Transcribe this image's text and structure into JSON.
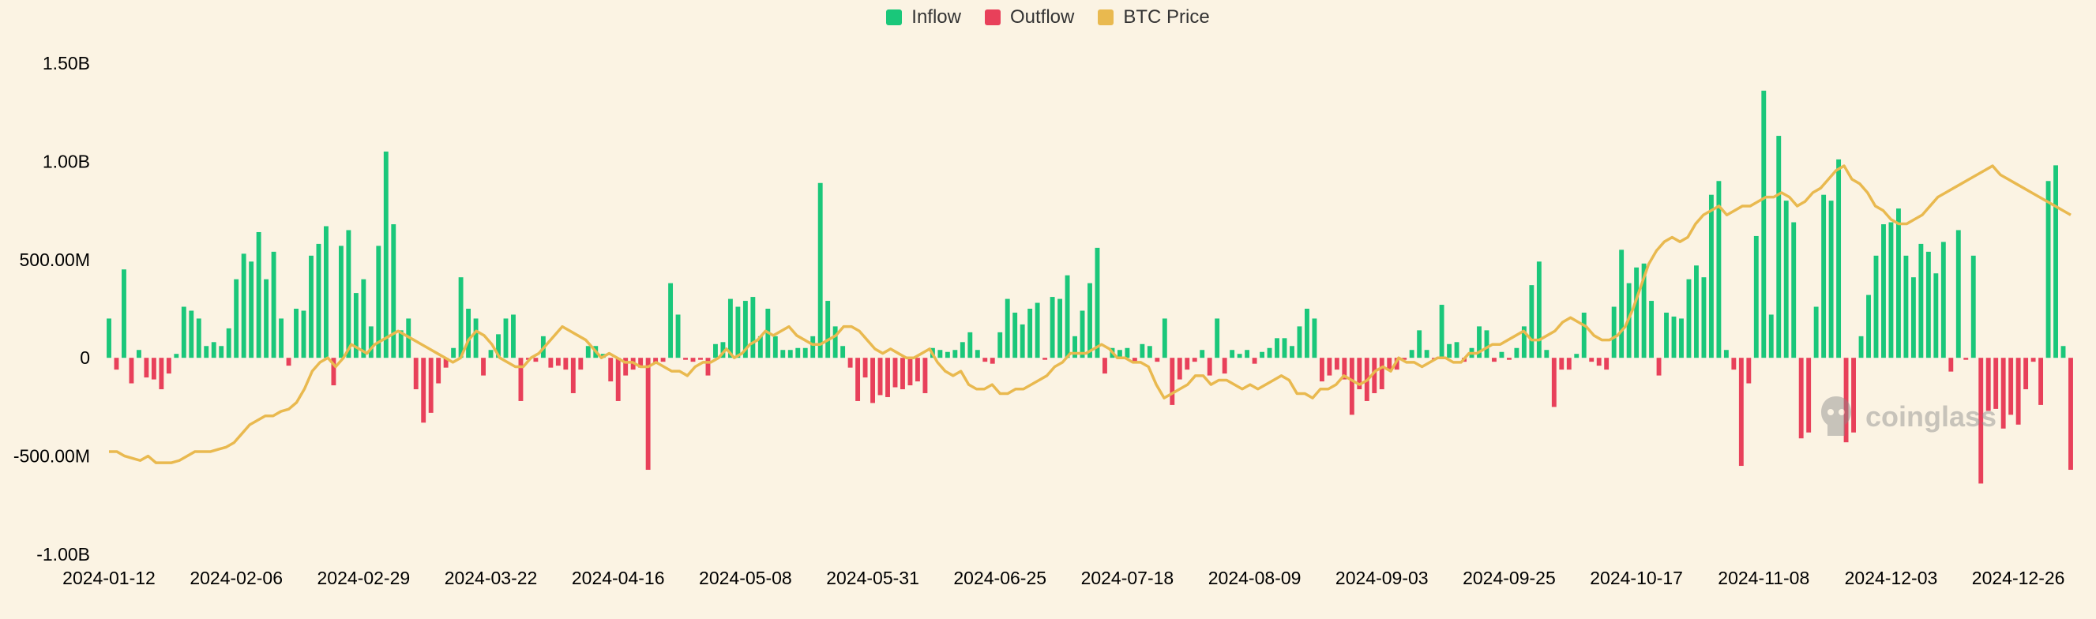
{
  "legend": {
    "inflow": "Inflow",
    "outflow": "Outflow",
    "price": "BTC Price"
  },
  "watermark": "coinglass",
  "colors": {
    "inflow": "#1ac77a",
    "outflow": "#e8405a",
    "price": "#e9b94f",
    "background": "#fbf3e3"
  },
  "chart_data": {
    "type": "bar",
    "title": "",
    "xlabel": "",
    "ylabel": "",
    "ylim": [
      -1000000000,
      1500000000
    ],
    "grid": false,
    "legend_position": "top-center",
    "y_ticks": [
      {
        "value": 1500000000,
        "label": "1.50B"
      },
      {
        "value": 1000000000,
        "label": "1.00B"
      },
      {
        "value": 500000000,
        "label": "500.00M"
      },
      {
        "value": 0,
        "label": "0"
      },
      {
        "value": -500000000,
        "label": "-500.00M"
      },
      {
        "value": -1000000000,
        "label": "-1.00B"
      }
    ],
    "x_tick_labels": [
      "2024-01-12",
      "2024-02-06",
      "2024-02-29",
      "2024-03-22",
      "2024-04-16",
      "2024-05-08",
      "2024-05-31",
      "2024-06-25",
      "2024-07-18",
      "2024-08-09",
      "2024-09-03",
      "2024-09-25",
      "2024-10-17",
      "2024-11-08",
      "2024-12-03",
      "2024-12-26"
    ],
    "x_tick_positions": [
      0,
      17,
      34,
      51,
      68,
      85,
      102,
      119,
      136,
      153,
      170,
      187,
      204,
      221,
      238,
      255
    ],
    "bar_values_millions": [
      200,
      -60,
      450,
      -130,
      40,
      -100,
      -110,
      -160,
      -80,
      20,
      260,
      240,
      200,
      60,
      80,
      60,
      150,
      400,
      530,
      490,
      640,
      400,
      540,
      200,
      -40,
      250,
      240,
      520,
      580,
      670,
      -140,
      570,
      650,
      330,
      400,
      160,
      570,
      1050,
      680,
      140,
      200,
      -160,
      -330,
      -280,
      -130,
      -50,
      50,
      410,
      250,
      200,
      -90,
      40,
      120,
      200,
      220,
      -220,
      -10,
      -20,
      110,
      -50,
      -40,
      -60,
      -180,
      -60,
      60,
      60,
      20,
      -120,
      -220,
      -90,
      -60,
      -50,
      -570,
      -30,
      -20,
      380,
      220,
      -10,
      -20,
      -10,
      -90,
      70,
      80,
      300,
      260,
      290,
      310,
      110,
      250,
      110,
      40,
      40,
      50,
      50,
      110,
      890,
      290,
      160,
      60,
      -50,
      -220,
      -100,
      -230,
      -190,
      -200,
      -150,
      -160,
      -140,
      -120,
      -180,
      50,
      40,
      30,
      40,
      80,
      130,
      40,
      -20,
      -30,
      130,
      300,
      230,
      170,
      250,
      280,
      -10,
      310,
      300,
      420,
      110,
      240,
      380,
      560,
      -80,
      50,
      40,
      50,
      -20,
      70,
      60,
      -20,
      200,
      -240,
      -110,
      -60,
      -20,
      40,
      -90,
      200,
      -80,
      40,
      20,
      40,
      -30,
      30,
      50,
      100,
      100,
      60,
      160,
      250,
      200,
      -120,
      -90,
      -60,
      -110,
      -290,
      -160,
      -220,
      -180,
      -160,
      -60,
      -60,
      -10,
      40,
      140,
      40,
      -10,
      270,
      70,
      80,
      -20,
      50,
      160,
      140,
      -20,
      30,
      -10,
      50,
      160,
      370,
      490,
      40,
      -250,
      -60,
      -60,
      20,
      230,
      -20,
      -40,
      -60,
      260,
      550,
      380,
      460,
      480,
      290,
      -90,
      230,
      210,
      200,
      400,
      470,
      410,
      830,
      900,
      40,
      -60,
      -550,
      -130,
      620,
      1360,
      220,
      1130,
      800,
      690,
      -410,
      -380,
      260,
      830,
      800,
      1010,
      -430,
      -380,
      110,
      320,
      520,
      680,
      690,
      760,
      520,
      410,
      580,
      540,
      430,
      590,
      -70,
      650,
      -10,
      520,
      -640,
      -270,
      -260,
      -360,
      -290,
      -340,
      -160,
      -20,
      -240,
      900,
      980,
      60,
      -570
    ],
    "price_values_k": [
      43,
      43,
      42,
      41.5,
      41,
      42,
      40.5,
      40.5,
      40.5,
      41,
      42,
      43,
      43,
      43,
      43.5,
      44,
      45,
      47,
      49,
      50,
      51,
      51,
      52,
      52.5,
      54,
      57,
      61,
      63,
      64,
      62,
      64,
      67,
      66,
      65,
      67,
      68,
      69,
      70,
      69,
      68,
      67,
      66,
      65,
      64,
      63,
      64,
      68,
      70,
      69,
      67,
      64,
      63,
      62,
      62,
      64,
      65,
      67,
      69,
      71,
      70,
      69,
      68,
      66,
      64,
      65,
      64,
      63,
      63,
      62,
      62,
      63,
      62,
      61,
      61,
      60,
      62,
      63,
      63,
      64,
      66,
      64,
      65,
      67,
      68,
      70,
      69,
      70,
      71,
      69,
      68,
      67,
      67,
      68,
      69,
      71,
      71,
      70,
      68,
      66,
      65,
      66,
      65,
      64,
      64,
      65,
      66,
      63,
      61,
      60,
      61,
      58,
      57,
      57,
      58,
      56,
      56,
      57,
      57,
      58,
      59,
      60,
      62,
      63,
      65,
      65,
      65,
      66,
      67,
      66,
      64,
      64,
      63,
      63,
      62,
      58,
      55,
      56,
      57,
      58,
      60,
      60,
      58,
      59,
      59,
      58,
      57,
      58,
      57,
      58,
      59,
      60,
      59,
      56,
      56,
      55,
      57,
      57,
      58,
      60,
      59,
      58,
      59,
      61,
      62,
      61,
      64,
      63,
      63,
      62,
      63,
      64,
      64,
      63,
      63,
      65,
      65,
      66,
      67,
      67,
      68,
      69,
      70,
      68,
      68,
      69,
      70,
      72,
      73,
      72,
      71,
      69,
      68,
      68,
      69,
      71,
      75,
      80,
      85,
      88,
      90,
      91,
      90,
      91,
      94,
      96,
      97,
      98,
      96,
      97,
      98,
      98,
      99,
      100,
      100,
      101,
      100,
      98,
      99,
      101,
      102,
      104,
      106,
      107,
      104,
      103,
      101,
      98,
      97,
      95,
      94,
      94,
      95,
      96,
      98,
      100,
      101,
      102,
      103,
      104,
      105,
      106,
      107,
      105,
      104,
      103,
      102,
      101,
      100,
      99,
      98,
      97,
      96
    ]
  }
}
